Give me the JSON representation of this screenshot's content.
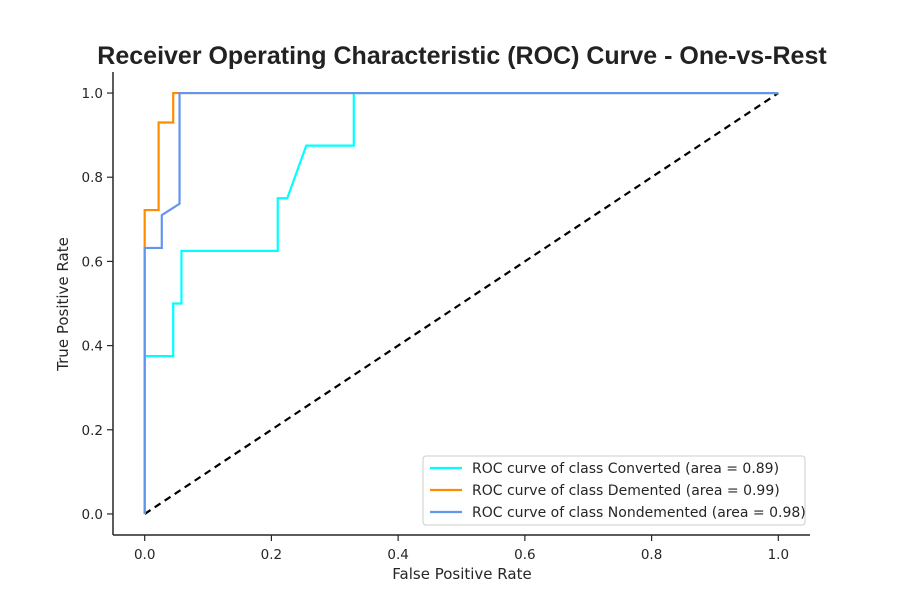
{
  "chart_data": {
    "type": "line",
    "title": "Receiver Operating Characteristic (ROC) Curve - One-vs-Rest",
    "xlabel": "False Positive Rate",
    "ylabel": "True Positive Rate",
    "xlim": [
      -0.05,
      1.05
    ],
    "ylim": [
      -0.05,
      1.05
    ],
    "xticks": [
      0.0,
      0.2,
      0.4,
      0.6,
      0.8,
      1.0
    ],
    "yticks": [
      0.0,
      0.2,
      0.4,
      0.6,
      0.8,
      1.0
    ],
    "xtick_labels": [
      "0.0",
      "0.2",
      "0.4",
      "0.6",
      "0.8",
      "1.0"
    ],
    "ytick_labels": [
      "0.0",
      "0.2",
      "0.4",
      "0.6",
      "0.8",
      "1.0"
    ],
    "grid": false,
    "legend_position": "bottom-right",
    "series": [
      {
        "name": "ROC curve of class Converted (area = 0.89)",
        "color": "#00FFFF",
        "x": [
          0.0,
          0.0,
          0.045,
          0.045,
          0.058,
          0.058,
          0.21,
          0.21,
          0.225,
          0.255,
          0.33,
          0.33,
          1.0
        ],
        "y": [
          0.0,
          0.375,
          0.375,
          0.5,
          0.5,
          0.625,
          0.625,
          0.75,
          0.75,
          0.875,
          0.875,
          1.0,
          1.0
        ]
      },
      {
        "name": "ROC curve of class Demented (area = 0.99)",
        "color": "#FF8C00",
        "x": [
          0.0,
          0.0,
          0.022,
          0.022,
          0.045,
          0.045,
          1.0
        ],
        "y": [
          0.0,
          0.722,
          0.722,
          0.93,
          0.93,
          1.0,
          1.0
        ]
      },
      {
        "name": "ROC curve of class Nondemented (area = 0.98)",
        "color": "#6495ED",
        "x": [
          0.0,
          0.0,
          0.027,
          0.027,
          0.055,
          0.055,
          1.0
        ],
        "y": [
          0.0,
          0.632,
          0.632,
          0.71,
          0.737,
          1.0,
          1.0
        ]
      }
    ],
    "reference_line": {
      "color": "#000000",
      "style": "dashed",
      "x": [
        0,
        1
      ],
      "y": [
        0,
        1
      ]
    }
  }
}
